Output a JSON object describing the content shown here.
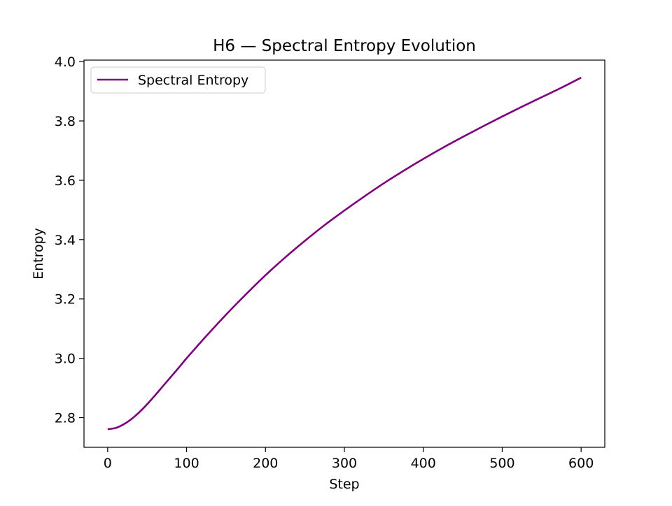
{
  "chart_data": {
    "type": "line",
    "title": "H6 — Spectral Entropy Evolution",
    "xlabel": "Step",
    "ylabel": "Entropy",
    "xlim": [
      -30,
      630
    ],
    "ylim": [
      2.7,
      4.005
    ],
    "xticks": [
      0,
      100,
      200,
      300,
      400,
      500,
      600
    ],
    "xtick_labels": [
      "0",
      "100",
      "200",
      "300",
      "400",
      "500",
      "600"
    ],
    "yticks": [
      2.8,
      3.0,
      3.2,
      3.4,
      3.6,
      3.8,
      4.0
    ],
    "ytick_labels": [
      "2.8",
      "3.0",
      "3.2",
      "3.4",
      "3.6",
      "3.8",
      "4.0"
    ],
    "grid": false,
    "legend_position": "top-left",
    "series": [
      {
        "name": "Spectral Entropy",
        "color": "#800080",
        "x": [
          0,
          10,
          20,
          30,
          40,
          50,
          60,
          70,
          80,
          90,
          100,
          125,
          150,
          175,
          200,
          225,
          250,
          275,
          300,
          325,
          350,
          375,
          400,
          425,
          450,
          475,
          500,
          525,
          550,
          575,
          600
        ],
        "y": [
          2.761,
          2.765,
          2.777,
          2.795,
          2.818,
          2.845,
          2.875,
          2.906,
          2.937,
          2.968,
          3.0,
          3.075,
          3.147,
          3.215,
          3.28,
          3.34,
          3.396,
          3.449,
          3.498,
          3.545,
          3.59,
          3.632,
          3.672,
          3.71,
          3.746,
          3.781,
          3.815,
          3.848,
          3.88,
          3.912,
          3.946
        ]
      }
    ]
  }
}
